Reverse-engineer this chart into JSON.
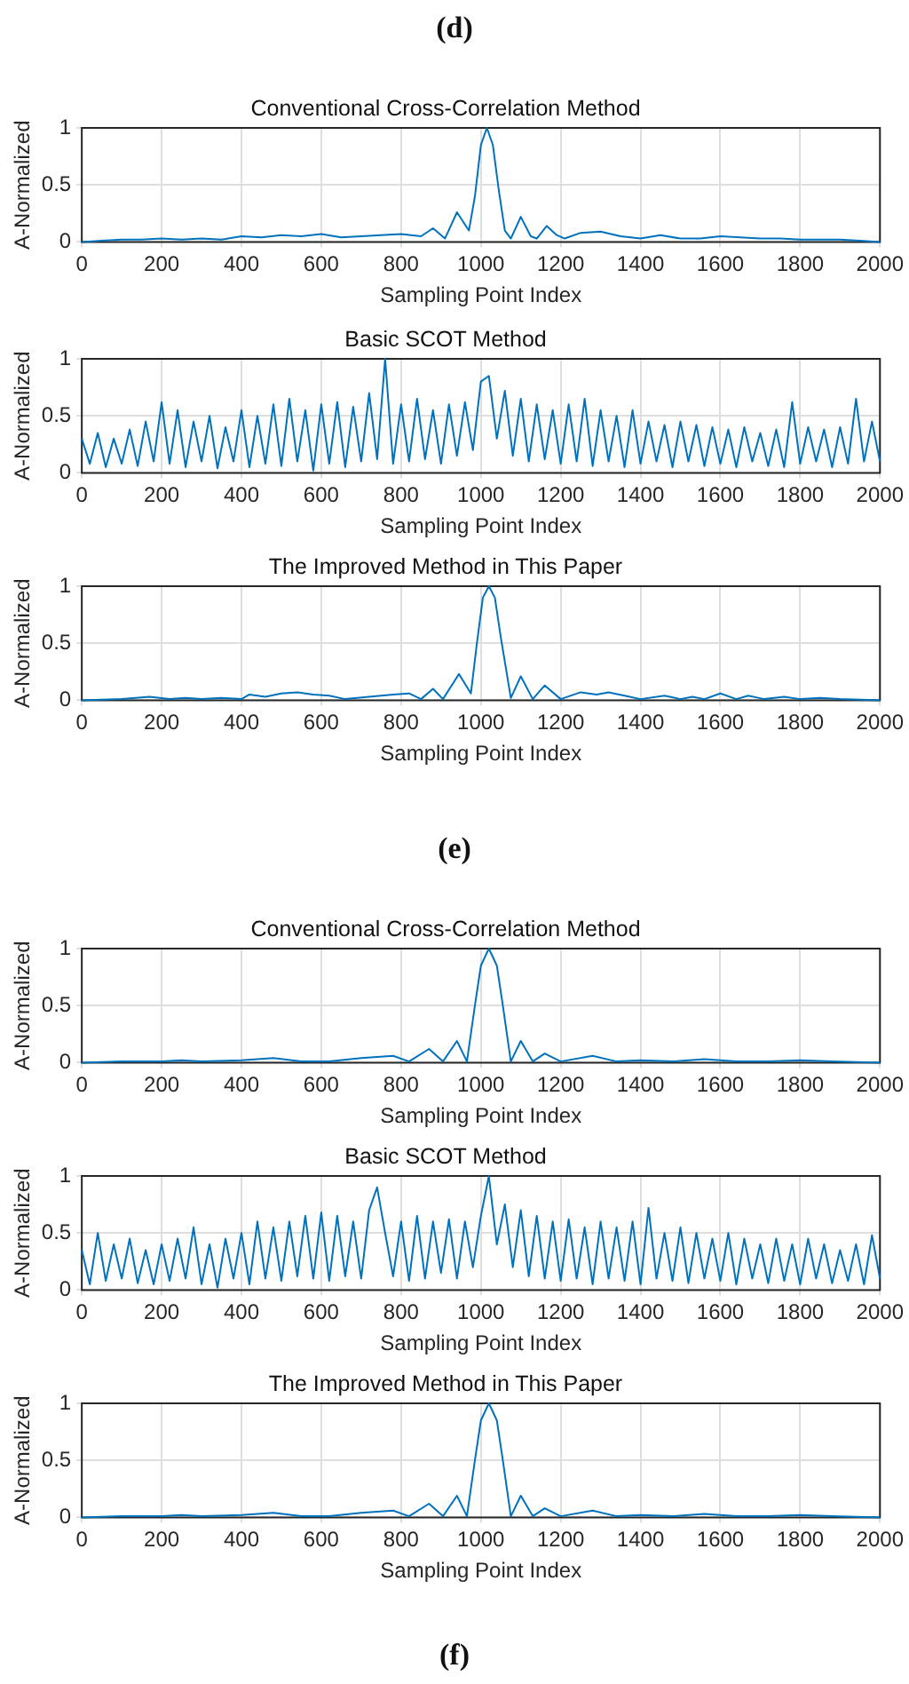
{
  "chart_data": [
    {
      "type": "line",
      "title": "Conventional Cross-Correlation Method",
      "xlabel": "Sampling Point Index",
      "ylabel": "A-Normalized",
      "annotations": [
        "(d)"
      ],
      "xlim": [
        0,
        2000
      ],
      "xticks": [
        0,
        200,
        400,
        600,
        800,
        1000,
        1200,
        1400,
        1600,
        1800,
        2000
      ],
      "ylim": [
        0,
        1
      ],
      "yticks": [
        0,
        0.5,
        1
      ],
      "grid": true,
      "marker": "none",
      "series": [
        {
          "color": "#0072bd",
          "x": [
            0,
            50,
            100,
            150,
            200,
            250,
            300,
            350,
            400,
            450,
            500,
            550,
            600,
            650,
            700,
            750,
            800,
            850,
            880,
            910,
            940,
            970,
            985,
            1000,
            1015,
            1030,
            1045,
            1060,
            1075,
            1100,
            1125,
            1140,
            1165,
            1190,
            1210,
            1250,
            1300,
            1350,
            1400,
            1450,
            1500,
            1550,
            1600,
            1650,
            1700,
            1750,
            1800,
            1850,
            1900,
            1950,
            2000
          ],
          "values": [
            0,
            0.01,
            0.02,
            0.02,
            0.03,
            0.02,
            0.03,
            0.02,
            0.05,
            0.04,
            0.06,
            0.05,
            0.07,
            0.04,
            0.05,
            0.06,
            0.07,
            0.05,
            0.12,
            0.03,
            0.26,
            0.1,
            0.4,
            0.85,
            1,
            0.85,
            0.45,
            0.1,
            0.03,
            0.22,
            0.05,
            0.03,
            0.14,
            0.06,
            0.03,
            0.08,
            0.09,
            0.05,
            0.03,
            0.06,
            0.03,
            0.03,
            0.05,
            0.04,
            0.03,
            0.03,
            0.02,
            0.02,
            0.02,
            0.01,
            0
          ]
        }
      ]
    },
    {
      "type": "line",
      "title": "Basic SCOT Method",
      "xlabel": "Sampling Point Index",
      "ylabel": "A-Normalized",
      "xlim": [
        0,
        2000
      ],
      "xticks": [
        0,
        200,
        400,
        600,
        800,
        1000,
        1200,
        1400,
        1600,
        1800,
        2000
      ],
      "ylim": [
        0,
        1
      ],
      "yticks": [
        0,
        0.5,
        1
      ],
      "grid": true,
      "marker": "none",
      "series": [
        {
          "color": "#0072bd",
          "x": [
            0,
            20,
            40,
            60,
            80,
            100,
            120,
            140,
            160,
            180,
            200,
            220,
            240,
            260,
            280,
            300,
            320,
            340,
            360,
            380,
            400,
            420,
            440,
            460,
            480,
            500,
            520,
            540,
            560,
            580,
            600,
            620,
            640,
            660,
            680,
            700,
            720,
            740,
            760,
            780,
            800,
            820,
            840,
            860,
            880,
            900,
            920,
            940,
            960,
            980,
            1000,
            1020,
            1040,
            1060,
            1080,
            1100,
            1120,
            1140,
            1160,
            1180,
            1200,
            1220,
            1240,
            1260,
            1280,
            1300,
            1320,
            1340,
            1360,
            1380,
            1400,
            1420,
            1440,
            1460,
            1480,
            1500,
            1520,
            1540,
            1560,
            1580,
            1600,
            1620,
            1640,
            1660,
            1680,
            1700,
            1720,
            1740,
            1760,
            1780,
            1800,
            1820,
            1840,
            1860,
            1880,
            1900,
            1920,
            1940,
            1960,
            1980,
            2000
          ],
          "values": [
            0.3,
            0.08,
            0.35,
            0.05,
            0.3,
            0.08,
            0.38,
            0.06,
            0.45,
            0.1,
            0.62,
            0.08,
            0.55,
            0.05,
            0.45,
            0.1,
            0.5,
            0.04,
            0.4,
            0.1,
            0.55,
            0.05,
            0.5,
            0.08,
            0.6,
            0.06,
            0.65,
            0.1,
            0.55,
            0.02,
            0.6,
            0.08,
            0.62,
            0.05,
            0.58,
            0.1,
            0.7,
            0.12,
            1,
            0.08,
            0.6,
            0.1,
            0.65,
            0.12,
            0.55,
            0.08,
            0.6,
            0.15,
            0.62,
            0.2,
            0.8,
            0.85,
            0.3,
            0.72,
            0.15,
            0.65,
            0.1,
            0.6,
            0.12,
            0.55,
            0.08,
            0.6,
            0.1,
            0.65,
            0.06,
            0.55,
            0.1,
            0.5,
            0.05,
            0.55,
            0.08,
            0.45,
            0.1,
            0.42,
            0.05,
            0.45,
            0.1,
            0.42,
            0.06,
            0.4,
            0.08,
            0.38,
            0.05,
            0.4,
            0.1,
            0.35,
            0.06,
            0.38,
            0.05,
            0.62,
            0.08,
            0.4,
            0.1,
            0.38,
            0.05,
            0.4,
            0.08,
            0.65,
            0.1,
            0.45,
            0.1
          ]
        }
      ]
    },
    {
      "type": "line",
      "title": "The Improved Method in This Paper",
      "xlabel": "Sampling Point Index",
      "ylabel": "A-Normalized",
      "annotations": [
        "(e)"
      ],
      "xlim": [
        0,
        2000
      ],
      "xticks": [
        0,
        200,
        400,
        600,
        800,
        1000,
        1200,
        1400,
        1600,
        1800,
        2000
      ],
      "ylim": [
        0,
        1
      ],
      "yticks": [
        0,
        0.5,
        1
      ],
      "grid": true,
      "marker": "none",
      "series": [
        {
          "color": "#0072bd",
          "x": [
            0,
            100,
            170,
            220,
            260,
            300,
            350,
            400,
            420,
            460,
            500,
            540,
            580,
            620,
            660,
            720,
            780,
            820,
            850,
            880,
            905,
            945,
            975,
            990,
            1005,
            1020,
            1035,
            1050,
            1075,
            1100,
            1130,
            1160,
            1200,
            1250,
            1290,
            1320,
            1360,
            1400,
            1460,
            1500,
            1530,
            1560,
            1600,
            1640,
            1670,
            1710,
            1760,
            1800,
            1850,
            1900,
            2000
          ],
          "values": [
            0,
            0.01,
            0.03,
            0.01,
            0.02,
            0.01,
            0.02,
            0.01,
            0.05,
            0.03,
            0.06,
            0.07,
            0.05,
            0.04,
            0.01,
            0.03,
            0.05,
            0.06,
            0.01,
            0.1,
            0.01,
            0.23,
            0.06,
            0.5,
            0.9,
            1,
            0.9,
            0.55,
            0.02,
            0.21,
            0.01,
            0.13,
            0.01,
            0.07,
            0.05,
            0.07,
            0.04,
            0.01,
            0.04,
            0.01,
            0.03,
            0.01,
            0.06,
            0.01,
            0.04,
            0.01,
            0.03,
            0.01,
            0.02,
            0.01,
            0
          ]
        }
      ]
    },
    {
      "type": "line",
      "title": "Conventional Cross-Correlation Method",
      "xlabel": "Sampling Point Index",
      "ylabel": "A-Normalized",
      "xlim": [
        0,
        2000
      ],
      "xticks": [
        0,
        200,
        400,
        600,
        800,
        1000,
        1200,
        1400,
        1600,
        1800,
        2000
      ],
      "ylim": [
        0,
        1
      ],
      "yticks": [
        0,
        0.5,
        1
      ],
      "grid": true,
      "marker": "none",
      "series": [
        {
          "color": "#0072bd",
          "x": [
            0,
            100,
            200,
            250,
            300,
            400,
            480,
            550,
            620,
            700,
            780,
            820,
            870,
            905,
            940,
            965,
            985,
            1000,
            1020,
            1040,
            1055,
            1075,
            1100,
            1130,
            1160,
            1200,
            1280,
            1340,
            1400,
            1480,
            1560,
            1640,
            1720,
            1800,
            1880,
            2000
          ],
          "values": [
            0,
            0.01,
            0.01,
            0.02,
            0.01,
            0.02,
            0.04,
            0.01,
            0.01,
            0.04,
            0.06,
            0.01,
            0.12,
            0.01,
            0.19,
            0.01,
            0.5,
            0.85,
            1,
            0.85,
            0.5,
            0.01,
            0.19,
            0.01,
            0.08,
            0.01,
            0.06,
            0.01,
            0.02,
            0.01,
            0.03,
            0.01,
            0.01,
            0.02,
            0.01,
            0
          ]
        }
      ]
    },
    {
      "type": "line",
      "title": "Basic SCOT Method",
      "xlabel": "Sampling Point Index",
      "ylabel": "A-Normalized",
      "xlim": [
        0,
        2000
      ],
      "xticks": [
        0,
        200,
        400,
        600,
        800,
        1000,
        1200,
        1400,
        1600,
        1800,
        2000
      ],
      "ylim": [
        0,
        1
      ],
      "yticks": [
        0,
        0.5,
        1
      ],
      "grid": true,
      "marker": "none",
      "series": [
        {
          "color": "#0072bd",
          "x": [
            0,
            20,
            40,
            60,
            80,
            100,
            120,
            140,
            160,
            180,
            200,
            220,
            240,
            260,
            280,
            300,
            320,
            340,
            360,
            380,
            400,
            420,
            440,
            460,
            480,
            500,
            520,
            540,
            560,
            580,
            600,
            620,
            640,
            660,
            680,
            700,
            720,
            740,
            760,
            780,
            800,
            820,
            840,
            860,
            880,
            900,
            920,
            940,
            960,
            980,
            1000,
            1020,
            1040,
            1060,
            1080,
            1100,
            1120,
            1140,
            1160,
            1180,
            1200,
            1220,
            1240,
            1260,
            1280,
            1300,
            1320,
            1340,
            1360,
            1380,
            1400,
            1420,
            1440,
            1460,
            1480,
            1500,
            1520,
            1540,
            1560,
            1580,
            1600,
            1620,
            1640,
            1660,
            1680,
            1700,
            1720,
            1740,
            1760,
            1780,
            1800,
            1820,
            1840,
            1860,
            1880,
            1900,
            1920,
            1940,
            1960,
            1980,
            2000
          ],
          "values": [
            0.35,
            0.05,
            0.5,
            0.08,
            0.4,
            0.1,
            0.45,
            0.06,
            0.35,
            0.05,
            0.4,
            0.08,
            0.45,
            0.1,
            0.55,
            0.05,
            0.4,
            0.02,
            0.45,
            0.1,
            0.5,
            0.05,
            0.6,
            0.1,
            0.55,
            0.08,
            0.6,
            0.12,
            0.65,
            0.1,
            0.68,
            0.08,
            0.65,
            0.12,
            0.6,
            0.1,
            0.7,
            0.9,
            0.5,
            0.12,
            0.6,
            0.08,
            0.65,
            0.1,
            0.6,
            0.15,
            0.62,
            0.1,
            0.6,
            0.2,
            0.65,
            1,
            0.4,
            0.75,
            0.2,
            0.7,
            0.12,
            0.65,
            0.1,
            0.6,
            0.08,
            0.62,
            0.1,
            0.55,
            0.05,
            0.6,
            0.1,
            0.55,
            0.08,
            0.6,
            0.05,
            0.72,
            0.1,
            0.5,
            0.08,
            0.55,
            0.06,
            0.5,
            0.1,
            0.45,
            0.08,
            0.5,
            0.05,
            0.45,
            0.1,
            0.4,
            0.06,
            0.45,
            0.08,
            0.4,
            0.05,
            0.45,
            0.1,
            0.4,
            0.06,
            0.35,
            0.08,
            0.4,
            0.05,
            0.48,
            0.1
          ]
        }
      ]
    },
    {
      "type": "line",
      "title": "The Improved Method in This Paper",
      "xlabel": "Sampling Point Index",
      "ylabel": "A-Normalized",
      "annotations": [
        "(f)"
      ],
      "xlim": [
        0,
        2000
      ],
      "xticks": [
        0,
        200,
        400,
        600,
        800,
        1000,
        1200,
        1400,
        1600,
        1800,
        2000
      ],
      "ylim": [
        0,
        1
      ],
      "yticks": [
        0,
        0.5,
        1
      ],
      "grid": true,
      "marker": "none",
      "series": [
        {
          "color": "#0072bd",
          "x": [
            0,
            100,
            200,
            250,
            300,
            400,
            480,
            550,
            620,
            700,
            780,
            820,
            870,
            905,
            940,
            965,
            985,
            1000,
            1020,
            1040,
            1055,
            1075,
            1100,
            1130,
            1160,
            1200,
            1280,
            1340,
            1400,
            1480,
            1560,
            1640,
            1720,
            1800,
            1880,
            2000
          ],
          "values": [
            0,
            0.01,
            0.01,
            0.02,
            0.01,
            0.02,
            0.04,
            0.01,
            0.01,
            0.04,
            0.06,
            0.01,
            0.12,
            0.01,
            0.19,
            0.01,
            0.5,
            0.85,
            1,
            0.85,
            0.5,
            0.01,
            0.19,
            0.01,
            0.08,
            0.01,
            0.06,
            0.01,
            0.02,
            0.01,
            0.03,
            0.01,
            0.01,
            0.02,
            0.01,
            0
          ]
        }
      ]
    }
  ]
}
